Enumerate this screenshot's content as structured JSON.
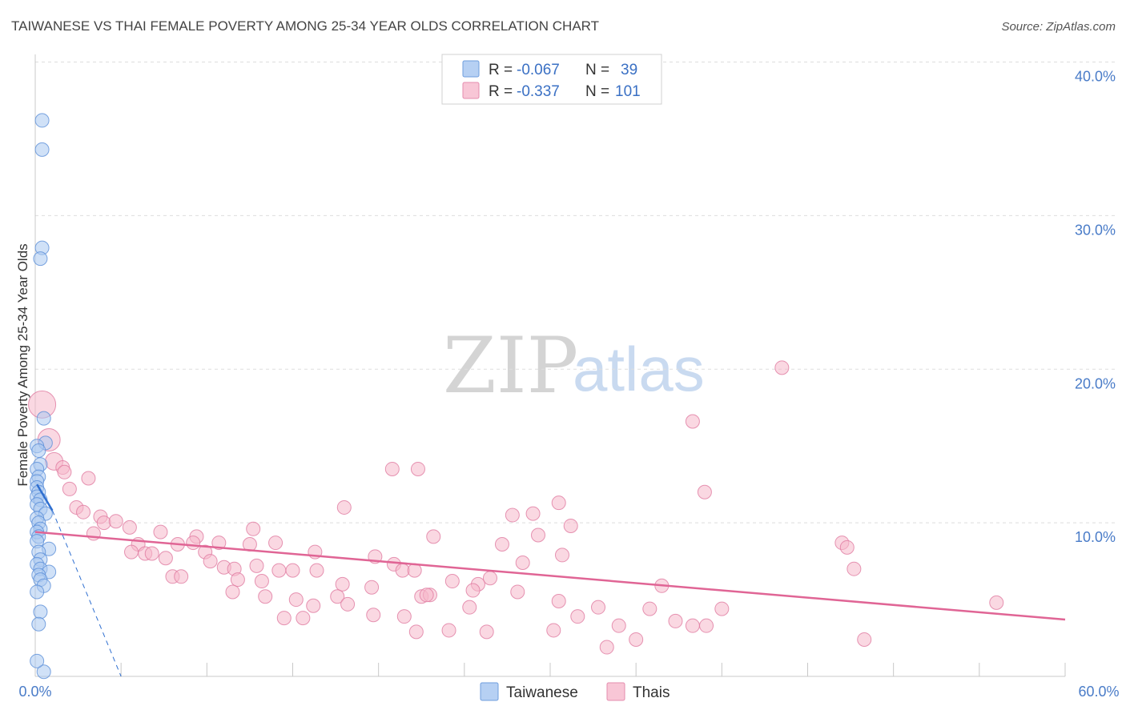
{
  "header": {
    "title": "TAIWANESE VS THAI FEMALE POVERTY AMONG 25-34 YEAR OLDS CORRELATION CHART",
    "source": "Source: ZipAtlas.com"
  },
  "watermark": {
    "zip": "ZIP",
    "atlas": "atlas"
  },
  "legend": {
    "rows": [
      {
        "r_label": "R =",
        "r_value": "-0.067",
        "n_label": "N =",
        "n_value": "39"
      },
      {
        "r_label": "R =",
        "r_value": "-0.337",
        "n_label": "N =",
        "n_value": "101"
      }
    ]
  },
  "bottom_legend": [
    "Taiwanese",
    "Thais"
  ],
  "colors": {
    "taiwanese_fill": "#aac8f0",
    "taiwanese_stroke": "#5b8ed8",
    "taiwanese_line": "#2f6fd0",
    "thais_fill": "#f5b8cb",
    "thais_stroke": "#e07aa0",
    "thais_line": "#e06595",
    "grid": "#dddddd",
    "tick_text": "#4a7cc8"
  },
  "chart_data": {
    "type": "scatter",
    "title": "TAIWANESE VS THAI FEMALE POVERTY AMONG 25-34 YEAR OLDS CORRELATION CHART",
    "xlabel": "",
    "ylabel": "Female Poverty Among 25-34 Year Olds",
    "xlim": [
      0,
      60
    ],
    "ylim": [
      0,
      40
    ],
    "x_ticks_labeled": [
      "0.0%",
      "60.0%"
    ],
    "y_ticks": [
      10,
      20,
      30,
      40
    ],
    "y_tick_labels": [
      "10.0%",
      "20.0%",
      "30.0%",
      "40.0%"
    ],
    "grid": true,
    "legend_position": "top-center",
    "series": [
      {
        "name": "Taiwanese",
        "r": -0.067,
        "n": 39,
        "points": [
          [
            0.4,
            36.2
          ],
          [
            0.4,
            34.3
          ],
          [
            0.4,
            27.9
          ],
          [
            0.3,
            27.2
          ],
          [
            0.5,
            16.8
          ],
          [
            0.6,
            15.2
          ],
          [
            0.1,
            15.0
          ],
          [
            0.2,
            14.7
          ],
          [
            0.3,
            13.8
          ],
          [
            0.1,
            13.5
          ],
          [
            0.2,
            13.0
          ],
          [
            0.1,
            12.7
          ],
          [
            0.1,
            12.3
          ],
          [
            0.2,
            12.0
          ],
          [
            0.1,
            11.7
          ],
          [
            0.3,
            11.5
          ],
          [
            0.1,
            11.2
          ],
          [
            0.3,
            10.9
          ],
          [
            0.6,
            10.6
          ],
          [
            0.1,
            10.3
          ],
          [
            0.2,
            10.0
          ],
          [
            0.3,
            9.6
          ],
          [
            0.1,
            9.4
          ],
          [
            0.2,
            9.1
          ],
          [
            0.1,
            8.8
          ],
          [
            0.8,
            8.3
          ],
          [
            0.2,
            8.1
          ],
          [
            0.3,
            7.6
          ],
          [
            0.1,
            7.3
          ],
          [
            0.3,
            7.0
          ],
          [
            0.8,
            6.8
          ],
          [
            0.2,
            6.6
          ],
          [
            0.3,
            6.3
          ],
          [
            0.5,
            5.9
          ],
          [
            0.1,
            5.5
          ],
          [
            0.3,
            4.2
          ],
          [
            0.2,
            3.4
          ],
          [
            0.5,
            0.3
          ],
          [
            0.1,
            1.0
          ]
        ],
        "trend": {
          "x": [
            0.1,
            1.0
          ],
          "y": [
            12.5,
            10.8
          ]
        },
        "trend_extension": {
          "x": [
            1.0,
            5.0
          ],
          "y": [
            10.8,
            0.0
          ]
        }
      },
      {
        "name": "Thais",
        "r": -0.337,
        "n": 101,
        "points": [
          [
            0.4,
            17.7
          ],
          [
            0.8,
            15.4
          ],
          [
            1.1,
            14.0
          ],
          [
            1.6,
            13.6
          ],
          [
            1.7,
            13.3
          ],
          [
            3.1,
            12.9
          ],
          [
            2.0,
            12.2
          ],
          [
            2.4,
            11.0
          ],
          [
            2.8,
            10.7
          ],
          [
            3.8,
            10.4
          ],
          [
            4.0,
            10.0
          ],
          [
            4.7,
            10.1
          ],
          [
            5.5,
            9.7
          ],
          [
            3.4,
            9.3
          ],
          [
            7.3,
            9.4
          ],
          [
            9.4,
            9.1
          ],
          [
            12.7,
            9.6
          ],
          [
            6.0,
            8.6
          ],
          [
            8.3,
            8.6
          ],
          [
            9.2,
            8.7
          ],
          [
            10.7,
            8.7
          ],
          [
            12.5,
            8.6
          ],
          [
            14.0,
            8.7
          ],
          [
            5.6,
            8.1
          ],
          [
            6.4,
            8.0
          ],
          [
            6.8,
            8.0
          ],
          [
            7.6,
            7.7
          ],
          [
            9.9,
            8.1
          ],
          [
            10.2,
            7.5
          ],
          [
            11.0,
            7.1
          ],
          [
            12.9,
            7.2
          ],
          [
            16.3,
            8.1
          ],
          [
            18.0,
            11.0
          ],
          [
            19.8,
            7.8
          ],
          [
            20.9,
            7.3
          ],
          [
            21.4,
            6.9
          ],
          [
            22.1,
            6.9
          ],
          [
            23.2,
            9.1
          ],
          [
            11.6,
            7.0
          ],
          [
            14.2,
            6.9
          ],
          [
            15.0,
            6.9
          ],
          [
            16.4,
            6.9
          ],
          [
            8.0,
            6.5
          ],
          [
            8.5,
            6.5
          ],
          [
            11.8,
            6.3
          ],
          [
            13.2,
            6.2
          ],
          [
            17.9,
            6.0
          ],
          [
            19.6,
            5.8
          ],
          [
            22.5,
            5.2
          ],
          [
            23.0,
            5.3
          ],
          [
            22.8,
            5.3
          ],
          [
            24.3,
            6.2
          ],
          [
            25.8,
            6.0
          ],
          [
            25.5,
            5.6
          ],
          [
            26.5,
            6.4
          ],
          [
            27.2,
            8.6
          ],
          [
            28.4,
            7.4
          ],
          [
            28.1,
            5.5
          ],
          [
            29.3,
            9.2
          ],
          [
            30.7,
            7.9
          ],
          [
            30.5,
            4.9
          ],
          [
            30.2,
            3.0
          ],
          [
            31.6,
            3.9
          ],
          [
            30.5,
            11.3
          ],
          [
            31.2,
            9.8
          ],
          [
            29.0,
            10.6
          ],
          [
            27.8,
            10.5
          ],
          [
            32.8,
            4.5
          ],
          [
            34.0,
            3.3
          ],
          [
            33.3,
            1.9
          ],
          [
            35.0,
            2.4
          ],
          [
            35.8,
            4.4
          ],
          [
            36.5,
            5.9
          ],
          [
            37.3,
            3.6
          ],
          [
            38.3,
            3.3
          ],
          [
            39.1,
            3.3
          ],
          [
            40.0,
            4.4
          ],
          [
            20.8,
            13.5
          ],
          [
            22.3,
            13.5
          ],
          [
            38.3,
            16.6
          ],
          [
            39.0,
            12.0
          ],
          [
            43.5,
            20.1
          ],
          [
            47.0,
            8.7
          ],
          [
            47.3,
            8.4
          ],
          [
            47.7,
            7.0
          ],
          [
            48.3,
            2.4
          ],
          [
            56.0,
            4.8
          ],
          [
            13.4,
            5.2
          ],
          [
            14.5,
            3.8
          ],
          [
            15.6,
            3.8
          ],
          [
            16.2,
            4.6
          ],
          [
            17.6,
            5.2
          ],
          [
            18.2,
            4.7
          ],
          [
            19.7,
            4.0
          ],
          [
            21.5,
            3.9
          ],
          [
            22.2,
            2.9
          ],
          [
            24.1,
            3.0
          ],
          [
            25.3,
            4.5
          ],
          [
            26.3,
            2.9
          ],
          [
            15.2,
            5.0
          ],
          [
            11.5,
            5.5
          ]
        ],
        "trend": {
          "x": [
            0.0,
            60.0
          ],
          "y": [
            9.4,
            3.7
          ]
        }
      }
    ]
  }
}
